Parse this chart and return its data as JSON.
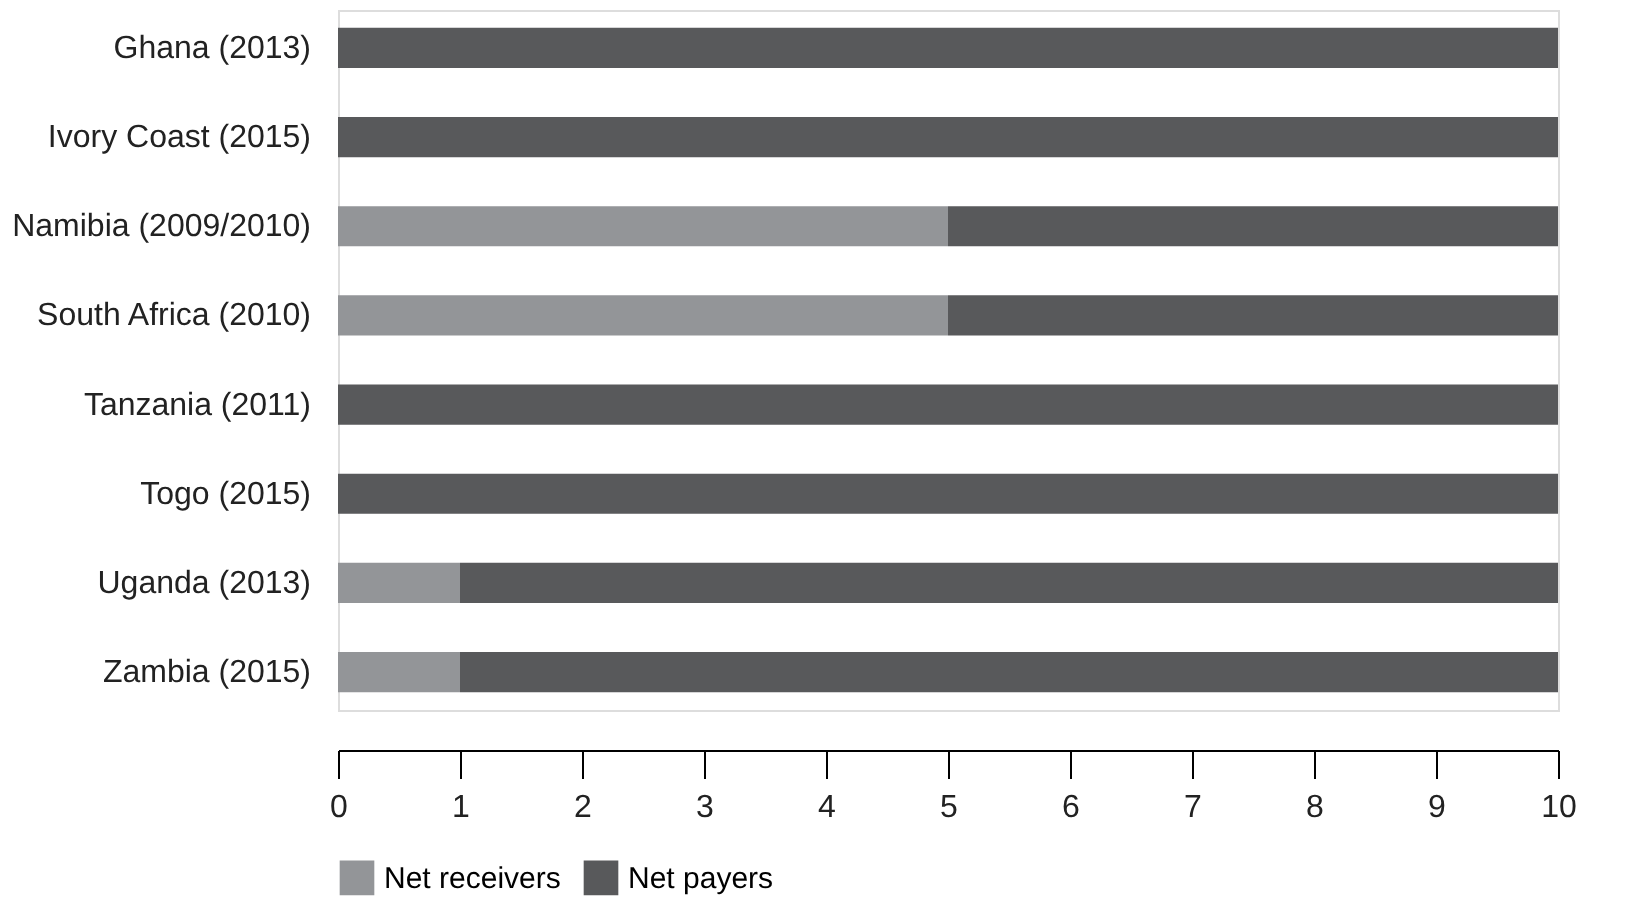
{
  "chart_data": {
    "type": "bar",
    "orientation": "horizontal",
    "stacked": true,
    "categories": [
      "Ghana (2013)",
      "Ivory Coast (2015)",
      "Namibia (2009/2010)",
      "South Africa (2010)",
      "Tanzania (2011)",
      "Togo (2015)",
      "Uganda (2013)",
      "Zambia (2015)"
    ],
    "series": [
      {
        "name": "Net receivers",
        "color": "#939598",
        "values": [
          0,
          0,
          5,
          5,
          0,
          0,
          1,
          1
        ]
      },
      {
        "name": "Net payers",
        "color": "#58595b",
        "values": [
          10,
          10,
          5,
          5,
          10,
          10,
          9,
          9
        ]
      }
    ],
    "xlim": [
      0,
      10
    ],
    "xticks": [
      0,
      1,
      2,
      3,
      4,
      5,
      6,
      7,
      8,
      9,
      10
    ],
    "grid": false,
    "legend": "bottom"
  }
}
